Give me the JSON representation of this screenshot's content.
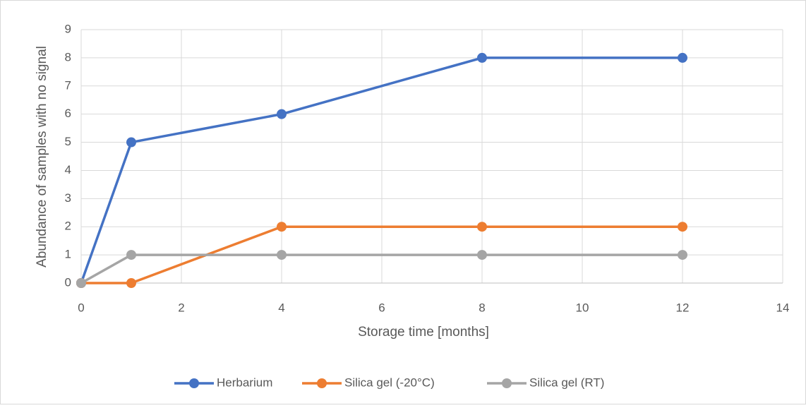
{
  "chart_data": {
    "type": "line",
    "x_label": "Storage time [months]",
    "y_label": "Abundance of samples with no signal",
    "x": [
      0,
      1,
      4,
      8,
      12
    ],
    "series": [
      {
        "name": "Herbarium",
        "color": "#4472c4",
        "values": [
          0,
          5,
          6,
          8,
          8
        ]
      },
      {
        "name": "Silica gel (-20°C)",
        "color": "#ed7d31",
        "values": [
          0,
          0,
          2,
          2,
          2
        ]
      },
      {
        "name": "Silica gel (RT)",
        "color": "#a5a5a5",
        "values": [
          0,
          1,
          1,
          1,
          1
        ]
      }
    ],
    "xlim": [
      0,
      14
    ],
    "xticks": [
      0,
      2,
      4,
      6,
      8,
      10,
      12,
      14
    ],
    "ylim": [
      0,
      9
    ],
    "yticks": [
      0,
      1,
      2,
      3,
      4,
      5,
      6,
      7,
      8,
      9
    ],
    "grid": true,
    "legend": "bottom"
  }
}
